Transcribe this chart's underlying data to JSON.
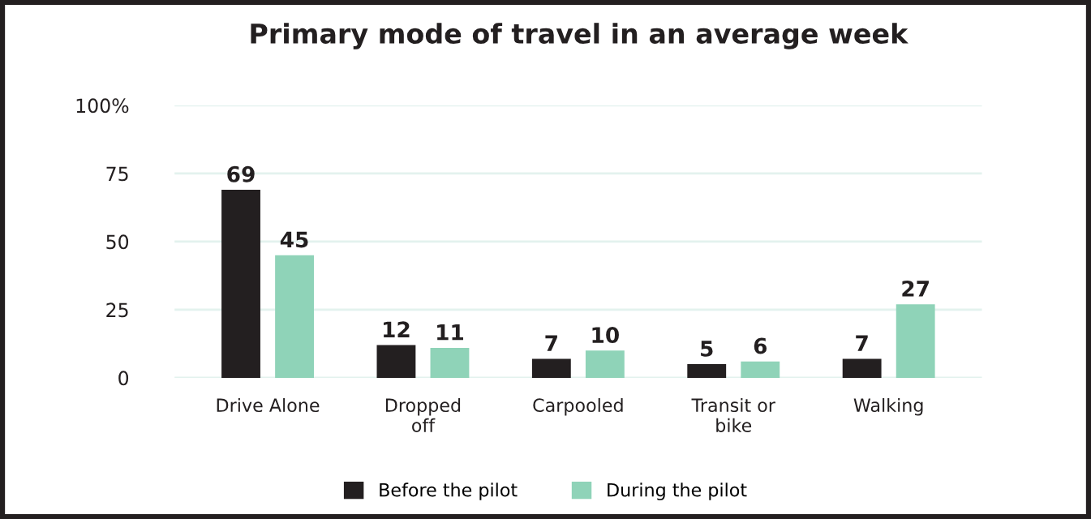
{
  "chart_data": {
    "type": "bar",
    "title": "Primary mode of travel in an average week",
    "categories": [
      "Drive Alone",
      "Dropped\noff",
      "Carpooled",
      "Transit or\nbike",
      "Walking"
    ],
    "series": [
      {
        "name": "Before the pilot",
        "color": "#231f20",
        "values": [
          69,
          12,
          7,
          5,
          7
        ]
      },
      {
        "name": "During the pilot",
        "color": "#8fd3b8",
        "values": [
          45,
          11,
          10,
          6,
          27
        ]
      }
    ],
    "ylim": [
      0,
      100
    ],
    "yticks": [
      0,
      25,
      50,
      75,
      {
        "value": 100,
        "label": "100%"
      }
    ],
    "grid": "y",
    "legend": "bottom",
    "data_labels": true
  }
}
